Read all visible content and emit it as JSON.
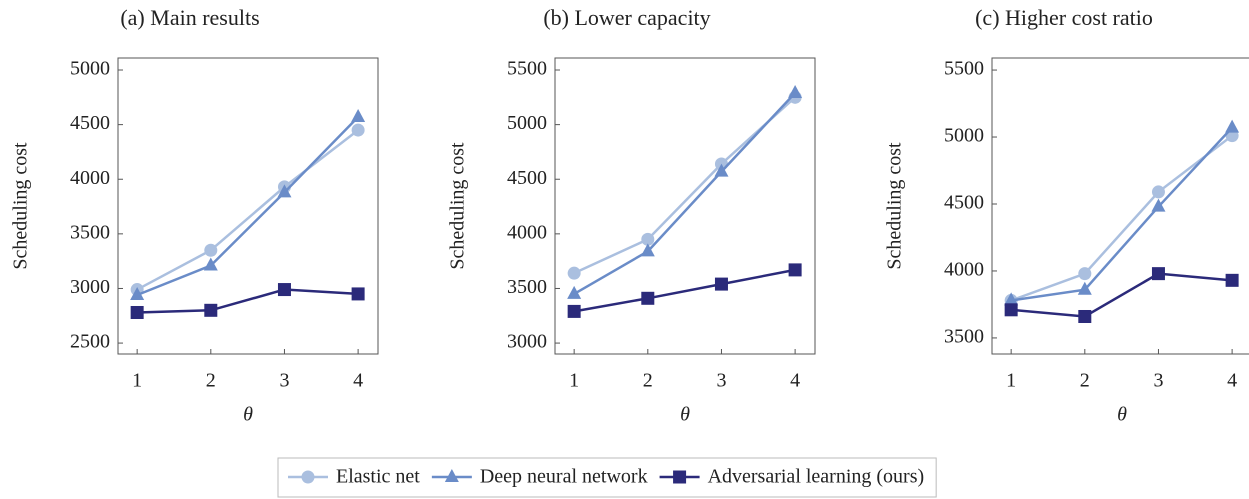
{
  "chart_data": [
    {
      "type": "line",
      "title": "(a) Main results",
      "xlabel": "θ",
      "ylabel": "Scheduling cost",
      "x": [
        1,
        2,
        3,
        4
      ],
      "xlim": [
        0.74,
        4.27
      ],
      "xticks": [
        1,
        2,
        3,
        4
      ],
      "ylim": [
        2400,
        5110
      ],
      "yticks": [
        2500,
        3000,
        3500,
        4000,
        4500,
        5000
      ],
      "series": [
        {
          "name": "Elastic net",
          "color": "#aabfdf",
          "marker": "circle",
          "values": [
            2990,
            3350,
            3930,
            4450
          ]
        },
        {
          "name": "Deep neural network",
          "color": "#6a8cc8",
          "marker": "triangle",
          "values": [
            2940,
            3210,
            3880,
            4570
          ]
        },
        {
          "name": "Adversarial learning (ours)",
          "color": "#2b2a7a",
          "marker": "square",
          "values": [
            2780,
            2800,
            2990,
            2950
          ]
        }
      ]
    },
    {
      "type": "line",
      "title": "(b) Lower capacity",
      "xlabel": "θ",
      "ylabel": "Scheduling cost",
      "x": [
        1,
        2,
        3,
        4
      ],
      "xlim": [
        0.74,
        4.27
      ],
      "xticks": [
        1,
        2,
        3,
        4
      ],
      "ylim": [
        2900,
        5610
      ],
      "yticks": [
        3000,
        3500,
        4000,
        4500,
        5000,
        5500
      ],
      "series": [
        {
          "color": "#aabfdf",
          "marker": "circle",
          "values": [
            3640,
            3950,
            4640,
            5250
          ]
        },
        {
          "color": "#6a8cc8",
          "marker": "triangle",
          "values": [
            3450,
            3840,
            4570,
            5290
          ]
        },
        {
          "color": "#2b2a7a",
          "marker": "square",
          "values": [
            3290,
            3410,
            3540,
            3670
          ]
        }
      ]
    },
    {
      "type": "line",
      "title": "(c) Higher cost ratio",
      "xlabel": "θ",
      "ylabel": "Scheduling cost",
      "x": [
        1,
        2,
        3,
        4
      ],
      "xlim": [
        0.74,
        4.27
      ],
      "xticks": [
        1,
        2,
        3,
        4
      ],
      "ylim": [
        3380,
        5590
      ],
      "yticks": [
        3500,
        4000,
        4500,
        5000,
        5500
      ],
      "series": [
        {
          "color": "#aabfdf",
          "marker": "circle",
          "values": [
            3780,
            3980,
            4590,
            5010
          ]
        },
        {
          "color": "#6a8cc8",
          "marker": "triangle",
          "values": [
            3780,
            3860,
            4480,
            5070
          ]
        },
        {
          "color": "#2b2a7a",
          "marker": "square",
          "values": [
            3710,
            3660,
            3980,
            3930
          ]
        }
      ]
    }
  ]
}
